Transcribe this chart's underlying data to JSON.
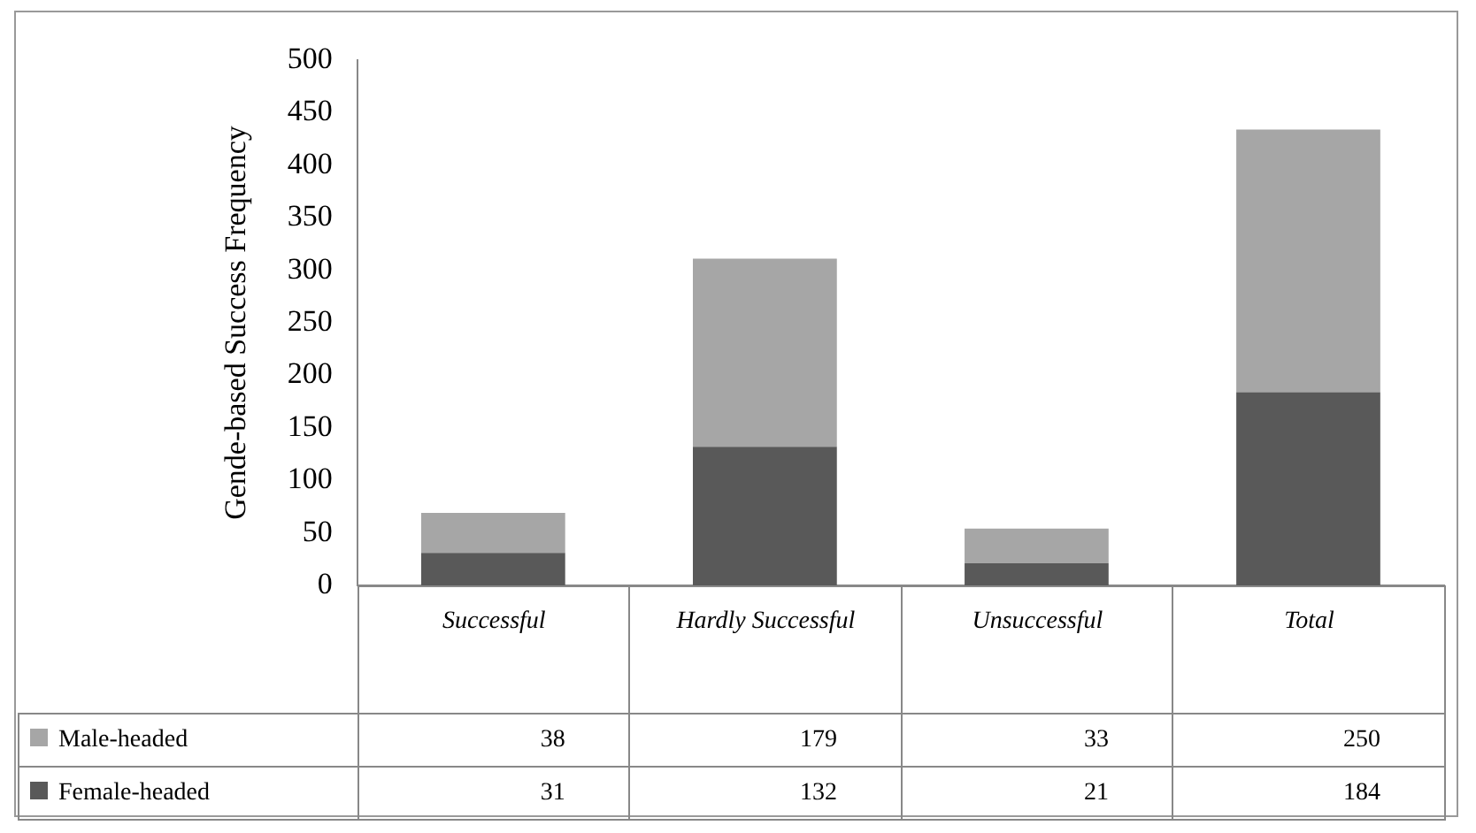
{
  "chart_data": {
    "type": "bar",
    "stacked": true,
    "ylabel": "Gende-based Success Frequency",
    "categories": [
      "Successful",
      "Hardly Successful",
      "Unsuccessful",
      "Total"
    ],
    "series": [
      {
        "name": "Female-headed",
        "color": "#595959",
        "values": [
          31,
          132,
          21,
          184
        ]
      },
      {
        "name": "Male-headed",
        "color": "#a6a6a6",
        "values": [
          38,
          179,
          33,
          250
        ]
      }
    ],
    "ylim": [
      0,
      500
    ],
    "yticks": [
      0,
      50,
      100,
      150,
      200,
      250,
      300,
      350,
      400,
      450,
      500
    ],
    "grid": false,
    "data_labels": true,
    "legend": "bottom"
  }
}
